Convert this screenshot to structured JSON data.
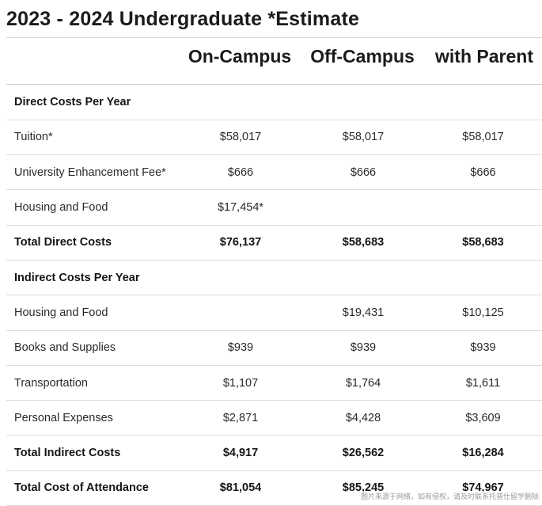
{
  "title": "2023 - 2024 Undergraduate *Estimate",
  "columns": [
    "On-Campus",
    "Off-Campus",
    "with Parent"
  ],
  "rows": [
    {
      "type": "section",
      "label": "Direct Costs Per Year",
      "values": [
        "",
        "",
        ""
      ]
    },
    {
      "type": "item",
      "label": "Tuition*",
      "values": [
        "$58,017",
        "$58,017",
        "$58,017"
      ]
    },
    {
      "type": "item",
      "label": "University Enhancement Fee*",
      "values": [
        "$666",
        "$666",
        "$666"
      ]
    },
    {
      "type": "item",
      "label": "Housing and Food",
      "values": [
        "$17,454*",
        "",
        ""
      ]
    },
    {
      "type": "total",
      "label": "Total Direct Costs",
      "values": [
        "$76,137",
        "$58,683",
        "$58,683"
      ]
    },
    {
      "type": "section",
      "label": "Indirect Costs Per Year",
      "values": [
        "",
        "",
        ""
      ]
    },
    {
      "type": "item",
      "label": "Housing and Food",
      "values": [
        "",
        "$19,431",
        "$10,125"
      ]
    },
    {
      "type": "item",
      "label": "Books and Supplies",
      "values": [
        "$939",
        "$939",
        "$939"
      ]
    },
    {
      "type": "item",
      "label": "Transportation",
      "values": [
        "$1,107",
        "$1,764",
        "$1,611"
      ]
    },
    {
      "type": "item",
      "label": "Personal Expenses",
      "values": [
        "$2,871",
        "$4,428",
        "$3,609"
      ]
    },
    {
      "type": "total",
      "label": "Total Indirect Costs",
      "values": [
        "$4,917",
        "$26,562",
        "$16,284"
      ]
    },
    {
      "type": "total",
      "label": "Total Cost of Attendance",
      "values": [
        "$81,054",
        "$85,245",
        "$74,967"
      ]
    }
  ],
  "watermark": "图片来源于网络，如有侵权，请及时联系托普仕留学删除"
}
